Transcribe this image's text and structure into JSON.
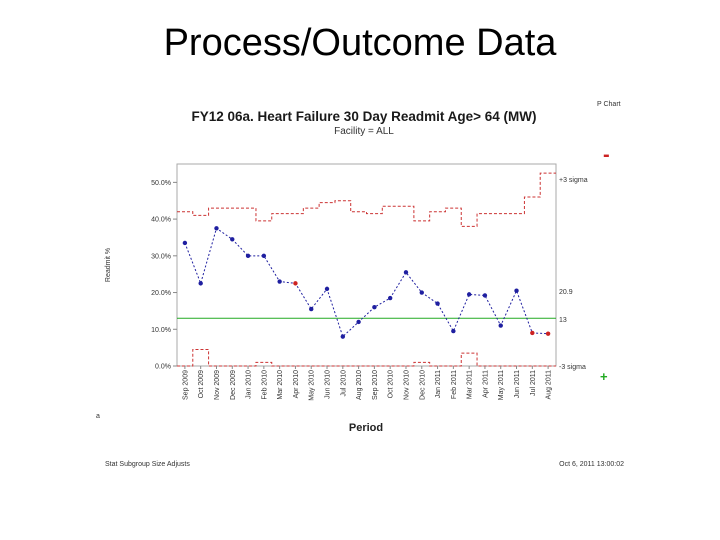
{
  "slide": {
    "title": "Process/Outcome Data"
  },
  "chart_data": {
    "type": "line",
    "chart_kind_label": "P Chart",
    "title": "FY12 06a. Heart Failure 30 Day Readmit Age> 64 (MW)",
    "subtitle": "Facility = ALL",
    "xlabel": "Period",
    "ylabel": "Readmit %",
    "ylim": [
      0,
      55
    ],
    "y_ticks": [
      "0.0%",
      "10.0%",
      "20.0%",
      "30.0%",
      "40.0%",
      "50.0%"
    ],
    "y_tick_values": [
      0,
      10,
      20,
      30,
      40,
      50
    ],
    "categories": [
      "Sep 2009",
      "Oct 2009",
      "Nov 2009",
      "Dec 2009",
      "Jan 2010",
      "Feb 2010",
      "Mar 2010",
      "Apr 2010",
      "May 2010",
      "Jun 2010",
      "Jul 2010",
      "Aug 2010",
      "Sep 2010",
      "Oct 2010",
      "Nov 2010",
      "Dec 2010",
      "Jan 2011",
      "Feb 2011",
      "Mar 2011",
      "Apr 2011",
      "May 2011",
      "Jun 2011",
      "Jul 2011",
      "Aug 2011"
    ],
    "series": [
      {
        "values": [
          33.5,
          22.5,
          37.5,
          34.5,
          30,
          30,
          23,
          22.5,
          15.5,
          21,
          8,
          12,
          16,
          18.5,
          25.5,
          20,
          17,
          9.5,
          19.5,
          19.2,
          11,
          20.5,
          9,
          8.8
        ],
        "color": "#1f1fa0",
        "special_point_indices": [
          7,
          22,
          23
        ],
        "special_color": "#cc2222"
      }
    ],
    "center_line": {
      "value": 13,
      "color": "#22aa22"
    },
    "ucl": [
      42,
      41,
      43,
      43,
      43,
      39.5,
      41.5,
      41.5,
      43,
      44.5,
      45,
      42,
      41.5,
      43.5,
      43.5,
      39.5,
      42,
      43,
      38,
      41.5,
      41.5,
      41.5,
      46,
      52.5
    ],
    "lcl": [
      0,
      4.5,
      0,
      0,
      0,
      1,
      0,
      0,
      0,
      0,
      0,
      0,
      0,
      0,
      0,
      1,
      0,
      0,
      3.5,
      0,
      0,
      0,
      0,
      0
    ],
    "limit_color": "#cc3333",
    "right_labels": [
      "+3 sigma",
      "20.9",
      "13",
      "-3 sigma"
    ],
    "signal_minus": "-",
    "signal_plus": "+",
    "footer_left": "Stat Subgroup Size Adjusts",
    "footer_right": "Oct 6, 2011 13:00:02",
    "corner_mark": "a"
  }
}
